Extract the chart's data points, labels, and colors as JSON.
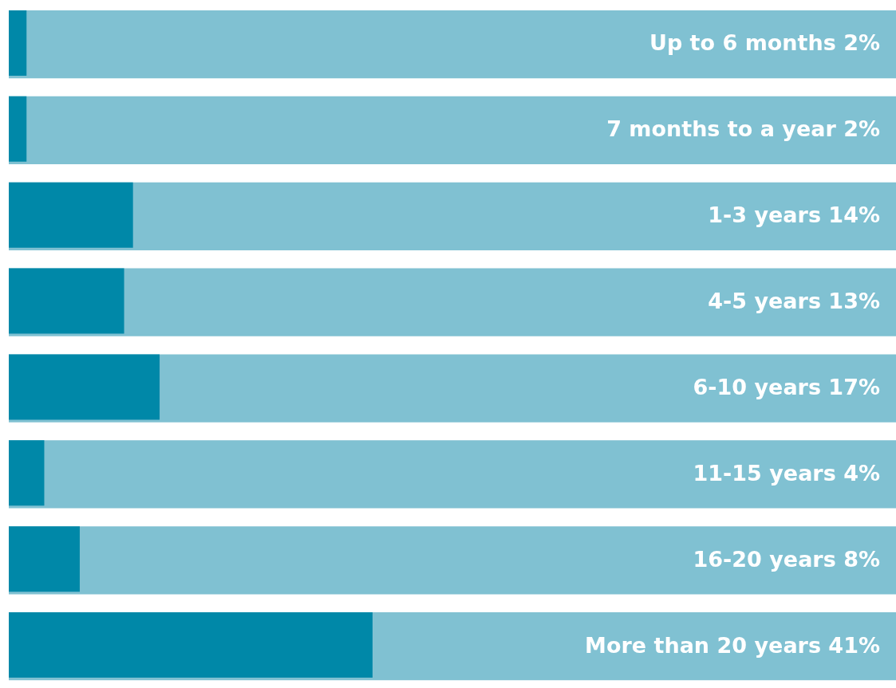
{
  "chart_data": {
    "type": "bar",
    "orientation": "horizontal",
    "categories": [
      "Up to 6 months",
      "7 months to a year",
      "1-3 years",
      "4-5 years",
      "6-10 years",
      "11-15 years",
      "16-20 years",
      "More than 20 years"
    ],
    "series": [
      {
        "color": "#80c1d2",
        "values": [
          100,
          100,
          100,
          100,
          100,
          100,
          100,
          100
        ]
      },
      {
        "color": "#0088a8",
        "values": [
          2,
          2,
          14,
          13,
          17,
          4,
          8,
          41
        ],
        "value_labels": [
          "2%",
          "2%",
          "14%",
          "13%",
          "17%",
          "4%",
          "8%",
          "41%"
        ]
      }
    ],
    "xlim": [
      0,
      100
    ],
    "grid": false
  }
}
